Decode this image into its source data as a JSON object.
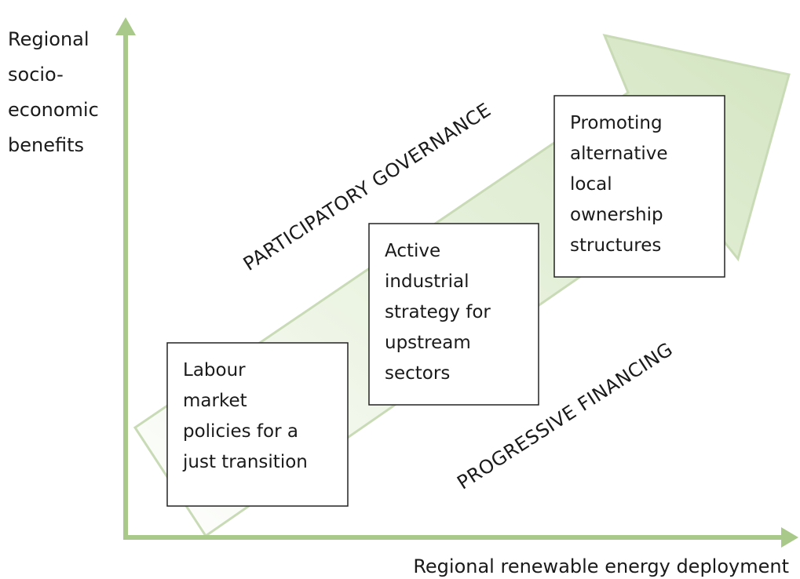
{
  "y_axis_label": [
    "Regional",
    "socio-",
    "economic",
    "benefits"
  ],
  "x_axis_label": "Regional renewable energy deployment",
  "upper_label": "PARTICIPATORY GOVERNANCE",
  "lower_label": "PROGRESSIVE FINANCING",
  "boxes": [
    {
      "lines": [
        "Labour",
        "market",
        "policies for a",
        "just transition"
      ]
    },
    {
      "lines": [
        "Active",
        "industrial",
        "strategy for",
        "upstream",
        "sectors"
      ]
    },
    {
      "lines": [
        "Promoting",
        "alternative",
        "local",
        "ownership",
        "structures"
      ]
    }
  ]
}
